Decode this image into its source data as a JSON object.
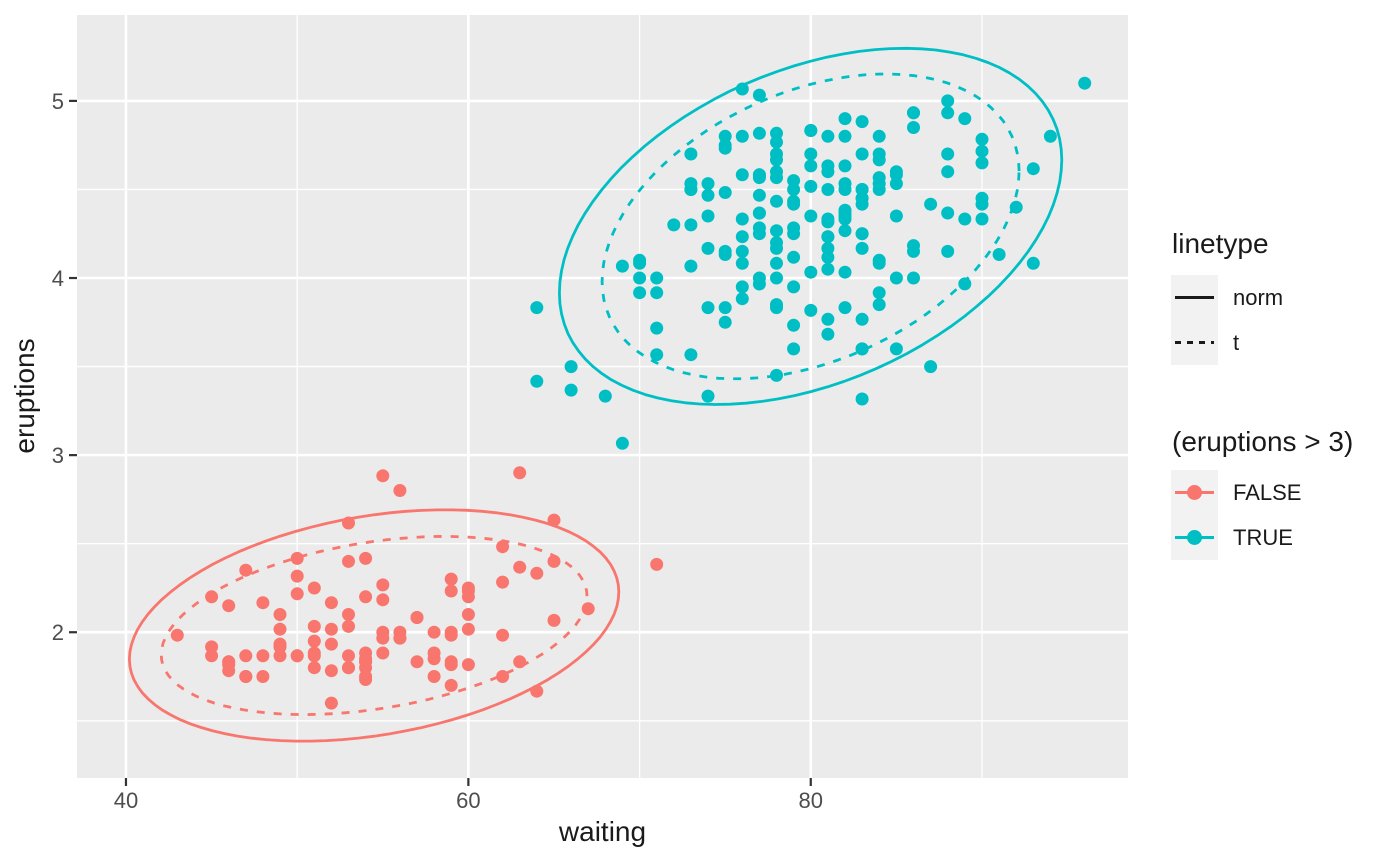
{
  "colors": {
    "panel_background": "#EBEBEB",
    "grid_line": "#FFFFFF",
    "tick_mark": "#333333",
    "tick_text": "#4D4D4D",
    "text": "#1A1A1A",
    "legend_key_background": "#F2F2F2",
    "false_group": "#F8766D",
    "true_group": "#00BFC4"
  },
  "legend": {
    "linetype": {
      "title": "linetype",
      "items": [
        {
          "label": "norm",
          "pattern": "solid"
        },
        {
          "label": "t",
          "pattern": "dashed"
        }
      ]
    },
    "groups": {
      "title": "(eruptions > 3)",
      "items": [
        {
          "label": "FALSE",
          "color": "#F8766D"
        },
        {
          "label": "TRUE",
          "color": "#00BFC4"
        }
      ]
    }
  },
  "chart_data": {
    "type": "scatter",
    "xlabel": "waiting",
    "ylabel": "eruptions",
    "x_ticks": [
      40,
      60,
      80
    ],
    "x_minor_ticks": [
      50,
      70,
      90
    ],
    "y_ticks": [
      2,
      3,
      4,
      5
    ],
    "y_minor_ticks": [
      1.5,
      2.5,
      3.5,
      4.5
    ],
    "x_domain": [
      37.14,
      98.53
    ],
    "y_domain": [
      1.177,
      5.485
    ],
    "grid": true,
    "legend_position": "right",
    "ellipse_confidence": 0.95,
    "ellipse_types": [
      "norm",
      "t"
    ],
    "series": [
      {
        "name": "FALSE",
        "color": "#F8766D",
        "t_scale": [
          0.87,
          0.76
        ],
        "points": [
          [
            54,
            1.8
          ],
          [
            62,
            2.283
          ],
          [
            55,
            2.883
          ],
          [
            51,
            1.95
          ],
          [
            54,
            1.833
          ],
          [
            47,
            1.75
          ],
          [
            52,
            2.167
          ],
          [
            62,
            1.75
          ],
          [
            52,
            1.6
          ],
          [
            51,
            1.8
          ],
          [
            47,
            1.75
          ],
          [
            55,
            1.967
          ],
          [
            52,
            2.017
          ],
          [
            48,
            1.867
          ],
          [
            59,
            1.833
          ],
          [
            58,
            1.883
          ],
          [
            58,
            1.75
          ],
          [
            53,
            2.1
          ],
          [
            59,
            2.0
          ],
          [
            54,
            1.833
          ],
          [
            54,
            1.733
          ],
          [
            64,
            1.667
          ],
          [
            59,
            2.233
          ],
          [
            48,
            1.75
          ],
          [
            60,
            1.817
          ],
          [
            65,
            2.067
          ],
          [
            56,
            1.967
          ],
          [
            62,
            1.983
          ],
          [
            60,
            2.017
          ],
          [
            65,
            2.633
          ],
          [
            48,
            2.167
          ],
          [
            60,
            2.2
          ],
          [
            50,
            1.867
          ],
          [
            63,
            1.833
          ],
          [
            51,
            1.867
          ],
          [
            62,
            2.483
          ],
          [
            49,
            2.1
          ],
          [
            47,
            1.867
          ],
          [
            52,
            1.783
          ],
          [
            59,
            2.3
          ],
          [
            59,
            1.7
          ],
          [
            50,
            2.317
          ],
          [
            59,
            1.817
          ],
          [
            53,
            2.617
          ],
          [
            56,
            1.967
          ],
          [
            45,
            1.917
          ],
          [
            55,
            2.267
          ],
          [
            45,
            1.867
          ],
          [
            56,
            2.8
          ],
          [
            46,
            1.833
          ],
          [
            51,
            1.883
          ],
          [
            53,
            2.033
          ],
          [
            60,
            2.233
          ],
          [
            59,
            1.983
          ],
          [
            49,
            2.017
          ],
          [
            53,
            1.8
          ],
          [
            65,
            2.4
          ],
          [
            53,
            1.8
          ],
          [
            45,
            2.2
          ],
          [
            58,
            2.0
          ],
          [
            63,
            2.367
          ],
          [
            52,
            1.933
          ],
          [
            49,
            1.917
          ],
          [
            57,
            2.083
          ],
          [
            50,
            2.417
          ],
          [
            55,
            1.883
          ],
          [
            51,
            2.033
          ],
          [
            46,
            1.833
          ],
          [
            55,
            2.183
          ],
          [
            57,
            1.833
          ],
          [
            51,
            2.25
          ],
          [
            60,
            2.1
          ],
          [
            53,
            1.867
          ],
          [
            46,
            1.783
          ],
          [
            49,
            1.933
          ],
          [
            71,
            2.383
          ],
          [
            49,
            1.867
          ],
          [
            53,
            2.4
          ],
          [
            55,
            2.0
          ],
          [
            50,
            1.867
          ],
          [
            54,
            1.75
          ],
          [
            54,
            2.417
          ],
          [
            50,
            2.217
          ],
          [
            54,
            1.883
          ],
          [
            54,
            1.85
          ],
          [
            64,
            2.333
          ],
          [
            47,
            2.35
          ],
          [
            63,
            2.9
          ],
          [
            57,
            2.083
          ],
          [
            67,
            2.133
          ],
          [
            54,
            2.2
          ],
          [
            56,
            2.0
          ],
          [
            58,
            1.85
          ],
          [
            43,
            1.983
          ],
          [
            60,
            2.25
          ],
          [
            46,
            2.15
          ],
          [
            46,
            1.817
          ]
        ]
      },
      {
        "name": "TRUE",
        "color": "#00BFC4",
        "t_scale": [
          0.83,
          0.86
        ],
        "points": [
          [
            79,
            3.6
          ],
          [
            74,
            3.333
          ],
          [
            85,
            4.533
          ],
          [
            88,
            4.7
          ],
          [
            85,
            3.6
          ],
          [
            85,
            4.35
          ],
          [
            84,
            3.917
          ],
          [
            78,
            4.2
          ],
          [
            83,
            4.7
          ],
          [
            84,
            4.8
          ],
          [
            79,
            4.25
          ],
          [
            78,
            3.45
          ],
          [
            69,
            3.067
          ],
          [
            74,
            4.533
          ],
          [
            83,
            3.6
          ],
          [
            76,
            4.083
          ],
          [
            78,
            3.85
          ],
          [
            79,
            4.433
          ],
          [
            73,
            4.3
          ],
          [
            77,
            4.467
          ],
          [
            66,
            3.367
          ],
          [
            80,
            4.033
          ],
          [
            74,
            3.833
          ],
          [
            80,
            4.833
          ],
          [
            90,
            4.783
          ],
          [
            80,
            4.35
          ],
          [
            84,
            4.567
          ],
          [
            73,
            4.533
          ],
          [
            83,
            3.317
          ],
          [
            64,
            3.833
          ],
          [
            82,
            4.633
          ],
          [
            75,
            4.8
          ],
          [
            90,
            4.716
          ],
          [
            80,
            4.833
          ],
          [
            83,
            4.883
          ],
          [
            71,
            3.717
          ],
          [
            77,
            4.567
          ],
          [
            81,
            4.317
          ],
          [
            84,
            4.5
          ],
          [
            82,
            4.8
          ],
          [
            92,
            4.4
          ],
          [
            78,
            4.167
          ],
          [
            78,
            4.7
          ],
          [
            73,
            4.7
          ],
          [
            82,
            4.033
          ],
          [
            79,
            4.5
          ],
          [
            71,
            4.0
          ],
          [
            76,
            5.067
          ],
          [
            78,
            4.567
          ],
          [
            76,
            3.883
          ],
          [
            83,
            3.6
          ],
          [
            75,
            4.133
          ],
          [
            82,
            4.333
          ],
          [
            70,
            4.1
          ],
          [
            73,
            4.067
          ],
          [
            88,
            4.933
          ],
          [
            76,
            3.95
          ],
          [
            80,
            4.517
          ],
          [
            86,
            4.0
          ],
          [
            90,
            4.333
          ],
          [
            78,
            4.817
          ],
          [
            72,
            4.3
          ],
          [
            84,
            4.667
          ],
          [
            75,
            3.75
          ],
          [
            82,
            4.9
          ],
          [
            88,
            4.367
          ],
          [
            83,
            4.5
          ],
          [
            81,
            4.05
          ],
          [
            84,
            4.7
          ],
          [
            86,
            4.85
          ],
          [
            81,
            3.683
          ],
          [
            75,
            4.733
          ],
          [
            89,
            4.9
          ],
          [
            79,
            4.417
          ],
          [
            81,
            4.633
          ],
          [
            85,
            4.6
          ],
          [
            87,
            4.417
          ],
          [
            69,
            4.067
          ],
          [
            77,
            4.25
          ],
          [
            88,
            4.6
          ],
          [
            81,
            3.767
          ],
          [
            82,
            4.5
          ],
          [
            90,
            4.65
          ],
          [
            83,
            4.167
          ],
          [
            89,
            4.333
          ],
          [
            82,
            4.383
          ],
          [
            86,
            4.933
          ],
          [
            79,
            3.733
          ],
          [
            81,
            4.233
          ],
          [
            82,
            4.533
          ],
          [
            77,
            4.817
          ],
          [
            76,
            4.333
          ],
          [
            80,
            4.633
          ],
          [
            96,
            5.1
          ],
          [
            77,
            5.033
          ],
          [
            77,
            4.0
          ],
          [
            81,
            4.6
          ],
          [
            71,
            3.567
          ],
          [
            70,
            4.0
          ],
          [
            81,
            4.5
          ],
          [
            93,
            4.083
          ],
          [
            89,
            3.967
          ],
          [
            86,
            4.15
          ],
          [
            78,
            3.833
          ],
          [
            66,
            3.5
          ],
          [
            76,
            4.583
          ],
          [
            88,
            5.0
          ],
          [
            93,
            4.617
          ],
          [
            77,
            4.583
          ],
          [
            68,
            3.333
          ],
          [
            81,
            4.167
          ],
          [
            81,
            4.333
          ],
          [
            73,
            4.5
          ],
          [
            85,
            4.0
          ],
          [
            74,
            4.167
          ],
          [
            77,
            4.583
          ],
          [
            83,
            4.25
          ],
          [
            83,
            3.767
          ],
          [
            78,
            4.433
          ],
          [
            84,
            4.083
          ],
          [
            83,
            4.417
          ],
          [
            81,
            4.8
          ],
          [
            76,
            4.8
          ],
          [
            84,
            4.1
          ],
          [
            77,
            3.966
          ],
          [
            81,
            4.233
          ],
          [
            87,
            3.5
          ],
          [
            77,
            4.366
          ],
          [
            78,
            4.667
          ],
          [
            82,
            4.35
          ],
          [
            91,
            4.133
          ],
          [
            78,
            4.6
          ],
          [
            77,
            4.367
          ],
          [
            84,
            3.85
          ],
          [
            83,
            4.5
          ],
          [
            80,
            4.7
          ],
          [
            75,
            3.833
          ],
          [
            64,
            3.417
          ],
          [
            76,
            4.233
          ],
          [
            94,
            4.8
          ],
          [
            76,
            4.15
          ],
          [
            82,
            4.267
          ],
          [
            75,
            4.483
          ],
          [
            78,
            4.0
          ],
          [
            79,
            4.117
          ],
          [
            78,
            4.083
          ],
          [
            78,
            4.267
          ],
          [
            70,
            3.917
          ],
          [
            79,
            4.55
          ],
          [
            70,
            4.083
          ],
          [
            86,
            4.183
          ],
          [
            90,
            4.45
          ],
          [
            77,
            4.283
          ],
          [
            79,
            3.95
          ],
          [
            75,
            4.15
          ],
          [
            86,
            4.933
          ],
          [
            85,
            4.583
          ],
          [
            82,
            3.833
          ],
          [
            82,
            4.367
          ],
          [
            74,
            4.35
          ],
          [
            83,
            4.45
          ],
          [
            73,
            3.567
          ],
          [
            73,
            4.5
          ],
          [
            88,
            4.15
          ],
          [
            80,
            3.817
          ],
          [
            71,
            3.917
          ],
          [
            83,
            4.45
          ],
          [
            79,
            4.283
          ],
          [
            78,
            4.767
          ],
          [
            84,
            4.533
          ],
          [
            83,
            4.25
          ],
          [
            75,
            4.75
          ],
          [
            81,
            4.117
          ],
          [
            90,
            4.417
          ],
          [
            74,
            4.467
          ]
        ]
      }
    ]
  }
}
